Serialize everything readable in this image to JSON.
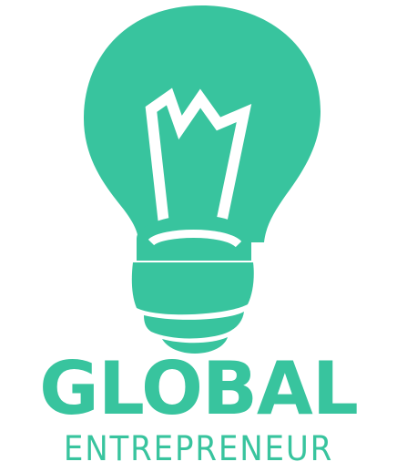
{
  "logo": {
    "title": "GLOBAL",
    "subtitle": "ENTREPRENEUR",
    "icon": "light-bulb-icon",
    "colors": {
      "brand": "#38c49e",
      "background": "#ffffff"
    }
  }
}
